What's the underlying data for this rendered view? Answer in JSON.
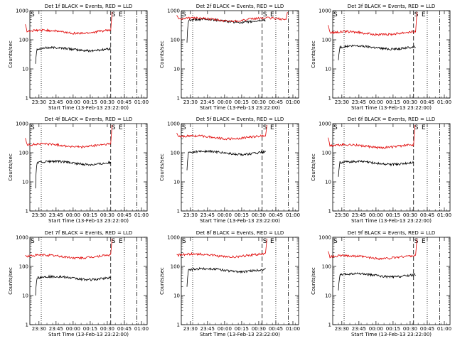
{
  "chart_data": [
    {
      "type": "line",
      "title": "Det 1f BLACK = Events, RED = LLD",
      "xlabel": "Start Time (13-Feb-13 23:22:00)",
      "ylabel": "Counts/sec",
      "black": {
        "start": 23.45,
        "end": 0.55,
        "level": 48,
        "first": 15
      },
      "red": {
        "start": 23.3,
        "end": 0.55,
        "level": 190,
        "first": 340,
        "final": 900
      }
    },
    {
      "type": "line",
      "title": "Det 2f BLACK = Events, RED = LLD",
      "xlabel": "Start Time (13-Feb-13 23:22:00)",
      "ylabel": "Counts/sec",
      "black": {
        "start": 23.45,
        "end": 0.6,
        "level": 450,
        "first": 80
      },
      "red": {
        "start": 23.3,
        "end": 0.9,
        "level": 500,
        "first": 700,
        "final": 900
      }
    },
    {
      "type": "line",
      "title": "Det 3f BLACK = Events, RED = LLD",
      "xlabel": "Start Time (13-Feb-13 23:22:00)",
      "ylabel": "Counts/sec",
      "black": {
        "start": 23.45,
        "end": 0.58,
        "level": 55,
        "first": 20
      },
      "red": {
        "start": 23.3,
        "end": 0.58,
        "level": 170,
        "first": 320,
        "final": 900
      }
    },
    {
      "type": "line",
      "title": "Det 4f BLACK = Events, RED = LLD",
      "xlabel": "Start Time (13-Feb-13 23:22:00)",
      "ylabel": "Counts/sec",
      "black": {
        "start": 23.45,
        "end": 0.55,
        "level": 45,
        "first": 6
      },
      "red": {
        "start": 23.3,
        "end": 0.55,
        "level": 180,
        "first": 320,
        "final": 900
      }
    },
    {
      "type": "line",
      "title": "Det 5f BLACK = Events, RED = LLD",
      "xlabel": "Start Time (13-Feb-13 23:22:00)",
      "ylabel": "Counts/sec",
      "black": {
        "start": 23.45,
        "end": 0.6,
        "level": 100,
        "first": 25
      },
      "red": {
        "start": 23.3,
        "end": 0.6,
        "level": 340,
        "first": 480,
        "final": 900
      }
    },
    {
      "type": "line",
      "title": "Det 6f BLACK = Events, RED = LLD",
      "xlabel": "Start Time (13-Feb-13 23:22:00)",
      "ylabel": "Counts/sec",
      "black": {
        "start": 23.45,
        "end": 0.55,
        "level": 45,
        "first": 15
      },
      "red": {
        "start": 23.3,
        "end": 0.55,
        "level": 170,
        "first": 330,
        "final": 900
      }
    },
    {
      "type": "line",
      "title": "Det 7f BLACK = Events, RED = LLD",
      "xlabel": "Start Time (13-Feb-13 23:22:00)",
      "ylabel": "Counts/sec",
      "black": {
        "start": 23.45,
        "end": 0.55,
        "level": 40,
        "first": 10
      },
      "red": {
        "start": 23.3,
        "end": 0.55,
        "level": 220,
        "first": 240,
        "final": 900
      }
    },
    {
      "type": "line",
      "title": "Det 8f BLACK = Events, RED = LLD",
      "xlabel": "Start Time (13-Feb-13 23:22:00)",
      "ylabel": "Counts/sec",
      "black": {
        "start": 23.45,
        "end": 0.6,
        "level": 75,
        "first": 20
      },
      "red": {
        "start": 23.3,
        "end": 0.6,
        "level": 240,
        "first": 260,
        "final": 900
      }
    },
    {
      "type": "line",
      "title": "Det 9f BLACK = Events, RED = LLD",
      "xlabel": "Start Time (13-Feb-13 23:22:00)",
      "ylabel": "Counts/sec",
      "black": {
        "start": 23.45,
        "end": 0.58,
        "level": 50,
        "first": 15
      },
      "red": {
        "start": 23.3,
        "end": 0.58,
        "level": 210,
        "first": 330,
        "final": 900
      }
    }
  ],
  "axes": {
    "y_scale": "log",
    "ylim": [
      1,
      1000
    ],
    "y_ticks": [
      "1",
      "10",
      "100",
      "1000"
    ],
    "xlim": [
      "23:22",
      "01:05"
    ],
    "x_ticks": [
      "23:30",
      "23:45",
      "00:00",
      "00:15",
      "00:30",
      "00:45",
      "01:00"
    ]
  },
  "markers": {
    "start_label": "S",
    "end_label": "E"
  },
  "colors": {
    "events": "#000000",
    "lld": "#e00000"
  }
}
